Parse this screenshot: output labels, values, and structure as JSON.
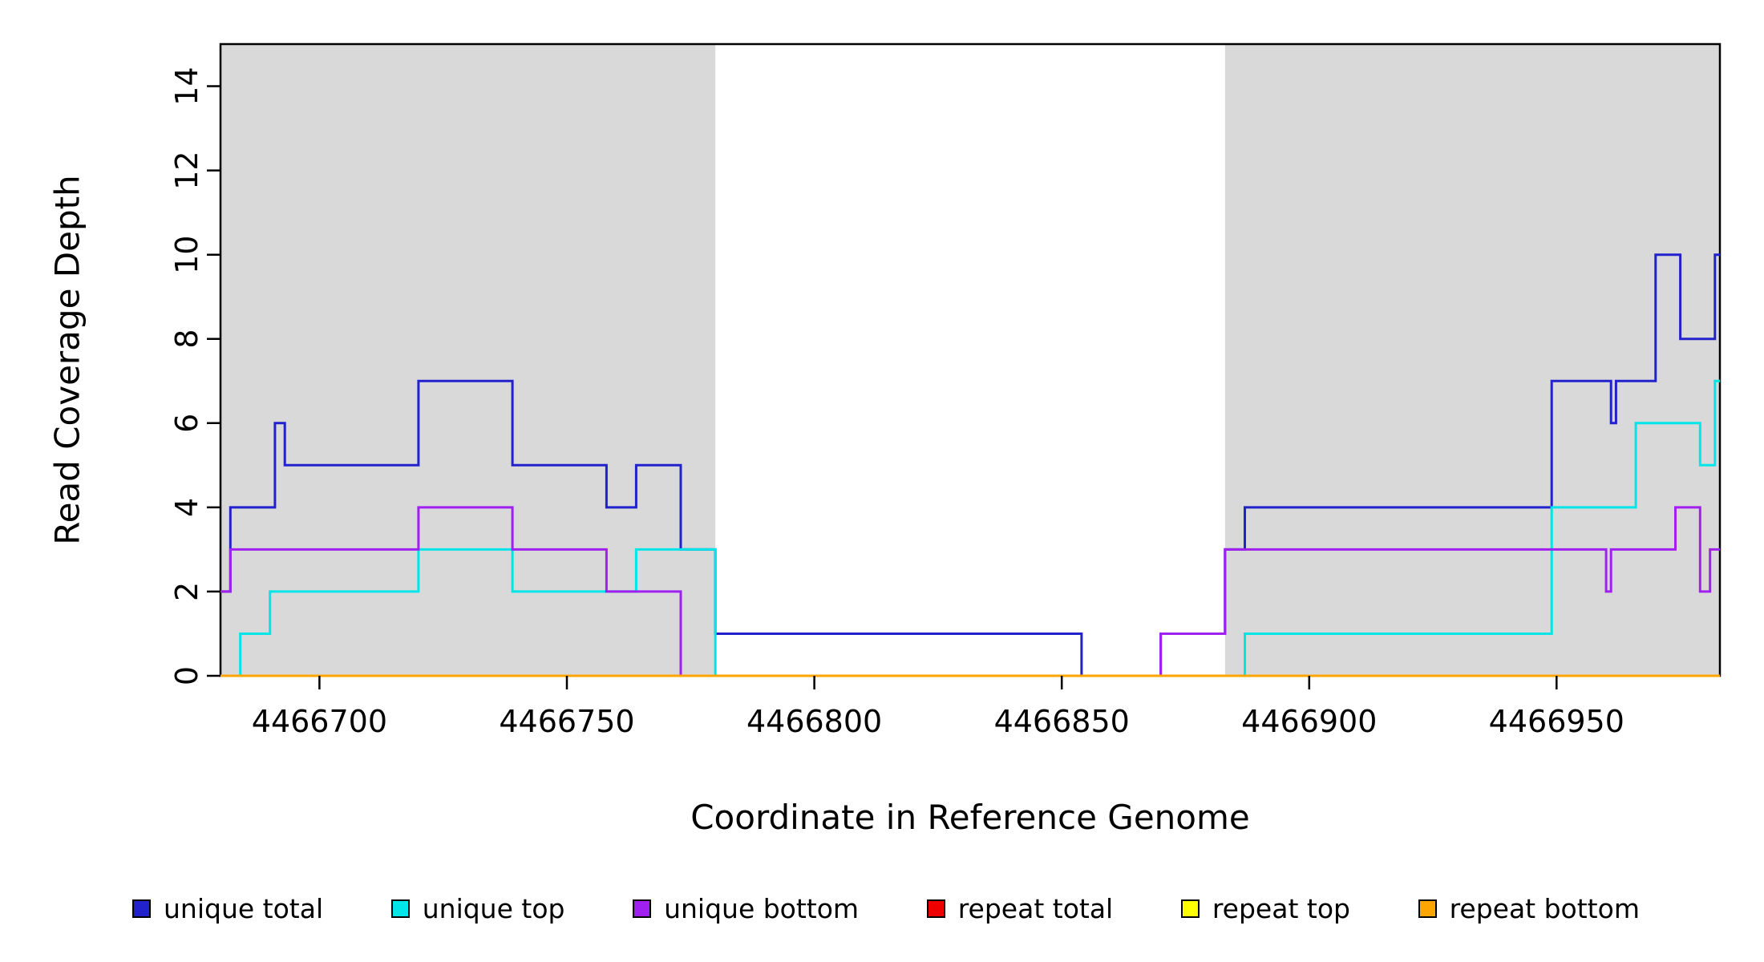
{
  "chart_data": {
    "type": "line",
    "subtype": "step-coverage",
    "title": "",
    "xlabel": "Coordinate in Reference Genome",
    "ylabel": "Read Coverage Depth",
    "xlim": [
      4466680,
      4466983
    ],
    "ylim": [
      0,
      15
    ],
    "x_ticks": [
      4466700,
      4466750,
      4466800,
      4466850,
      4466900,
      4466950
    ],
    "y_ticks": [
      0,
      2,
      4,
      6,
      8,
      10,
      12,
      14
    ],
    "grid": false,
    "legend_position": "bottom",
    "shade_color": "#d9d9d9",
    "shaded_regions": [
      {
        "x0": 4466680,
        "x1": 4466780
      },
      {
        "x0": 4466883,
        "x1": 4466983
      }
    ],
    "series": [
      {
        "name": "unique total",
        "color": "#2222cd",
        "steps": [
          [
            4466680,
            2
          ],
          [
            4466682,
            4
          ],
          [
            4466691,
            6
          ],
          [
            4466693,
            5
          ],
          [
            4466720,
            7
          ],
          [
            4466739,
            5
          ],
          [
            4466758,
            4
          ],
          [
            4466764,
            5
          ],
          [
            4466773,
            3
          ],
          [
            4466780,
            1
          ],
          [
            4466854,
            0
          ],
          [
            4466870,
            1
          ],
          [
            4466883,
            3
          ],
          [
            4466887,
            4
          ],
          [
            4466949,
            7
          ],
          [
            4466961,
            6
          ],
          [
            4466962,
            7
          ],
          [
            4466970,
            10
          ],
          [
            4466975,
            8
          ],
          [
            4466982,
            10
          ]
        ]
      },
      {
        "name": "unique top",
        "color": "#00e5e8",
        "steps": [
          [
            4466680,
            0
          ],
          [
            4466684,
            1
          ],
          [
            4466690,
            2
          ],
          [
            4466720,
            3
          ],
          [
            4466739,
            2
          ],
          [
            4466764,
            3
          ],
          [
            4466780,
            0
          ],
          [
            4466887,
            1
          ],
          [
            4466949,
            4
          ],
          [
            4466966,
            6
          ],
          [
            4466979,
            5
          ],
          [
            4466982,
            7
          ]
        ]
      },
      {
        "name": "unique bottom",
        "color": "#a020f0",
        "steps": [
          [
            4466680,
            2
          ],
          [
            4466682,
            3
          ],
          [
            4466720,
            4
          ],
          [
            4466739,
            3
          ],
          [
            4466758,
            2
          ],
          [
            4466773,
            0
          ],
          [
            4466870,
            1
          ],
          [
            4466883,
            3
          ],
          [
            4466960,
            2
          ],
          [
            4466961,
            3
          ],
          [
            4466974,
            4
          ],
          [
            4466979,
            2
          ],
          [
            4466981,
            3
          ]
        ]
      },
      {
        "name": "repeat total",
        "color": "#ee0000",
        "steps": [
          [
            4466680,
            0
          ]
        ]
      },
      {
        "name": "repeat top",
        "color": "#ffff00",
        "steps": [
          [
            4466680,
            0
          ]
        ]
      },
      {
        "name": "repeat bottom",
        "color": "#ffa500",
        "steps": [
          [
            4466680,
            0
          ]
        ]
      }
    ]
  }
}
